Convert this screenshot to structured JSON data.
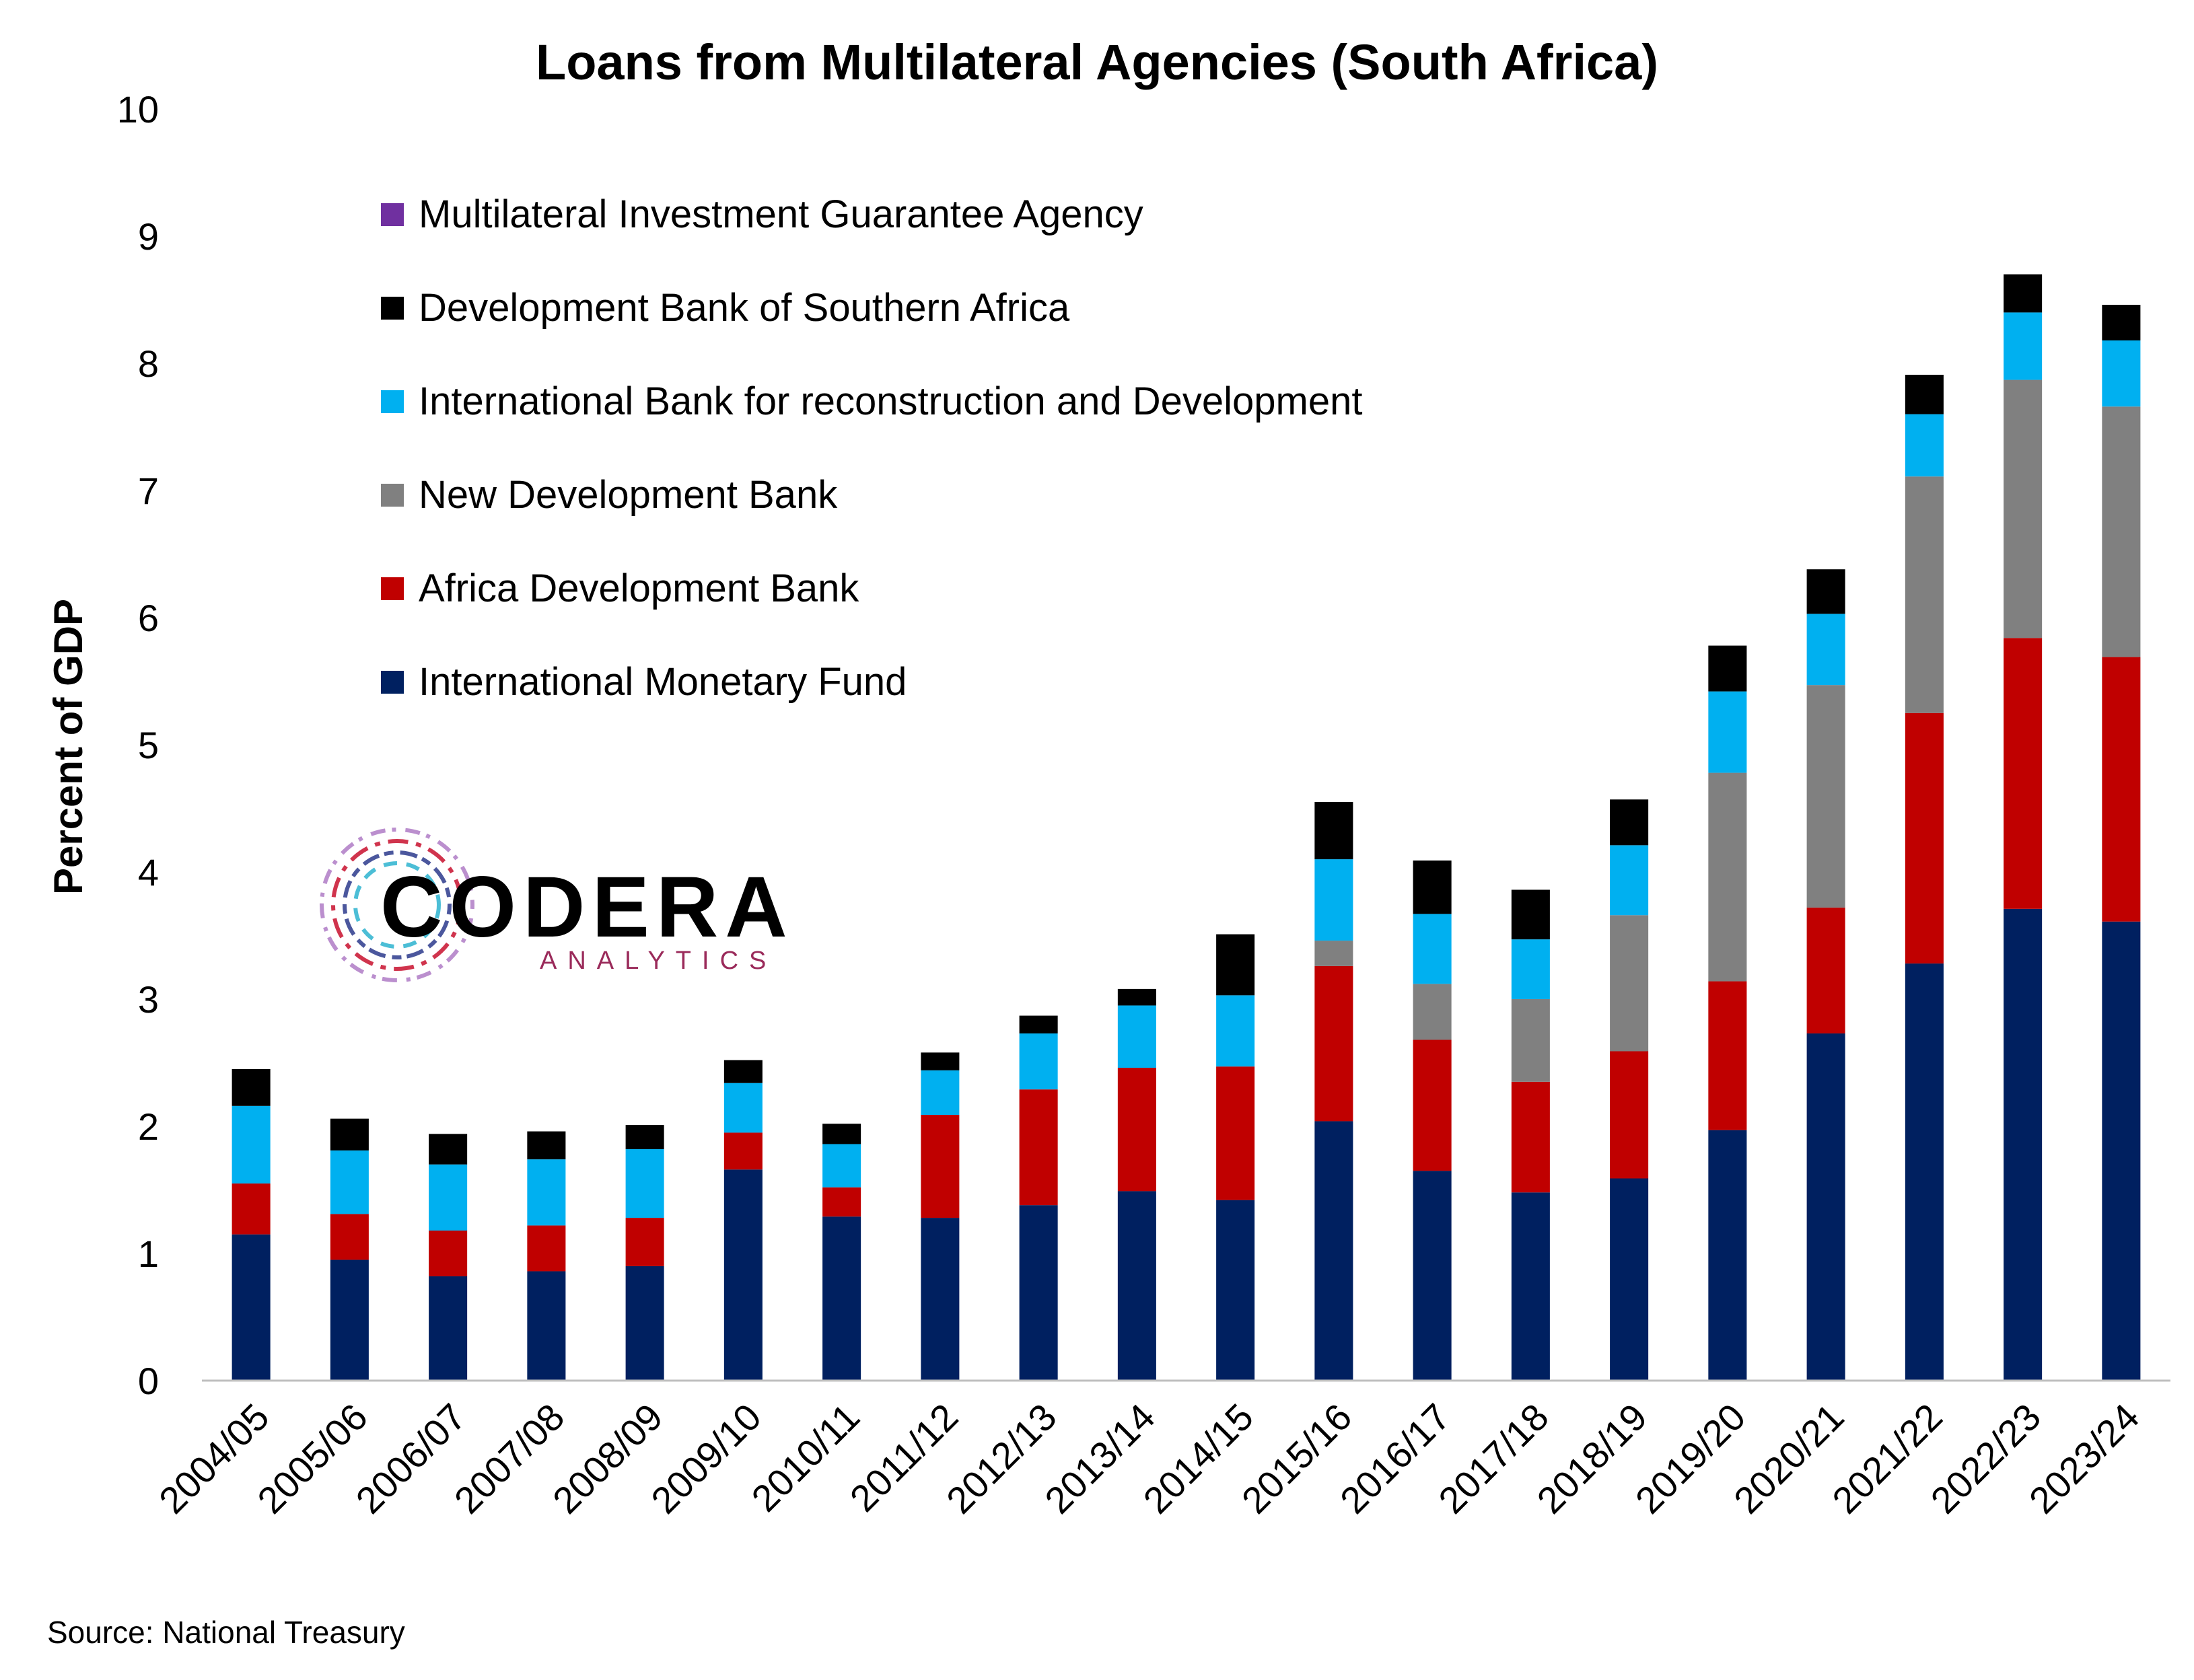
{
  "chart_data": {
    "type": "bar",
    "stacked": true,
    "title": "Loans from Multilateral Agencies (South Africa)",
    "ylabel": "Percent of GDP",
    "xlabel": "",
    "ylim": [
      0,
      10
    ],
    "yticks": [
      0,
      1,
      2,
      3,
      4,
      5,
      6,
      7,
      8,
      9,
      10
    ],
    "grid": false,
    "legend_position": "top-left",
    "categories": [
      "2004/05",
      "2005/06",
      "2006/07",
      "2007/08",
      "2008/09",
      "2009/10",
      "2010/11",
      "2011/12",
      "2012/13",
      "2013/14",
      "2014/15",
      "2015/16",
      "2016/17",
      "2017/18",
      "2018/19",
      "2019/20",
      "2020/21",
      "2021/22",
      "2022/23",
      "2023/24"
    ],
    "series": [
      {
        "name": "International Monetary Fund",
        "color": "#002060",
        "values": [
          1.15,
          0.95,
          0.82,
          0.86,
          0.9,
          1.66,
          1.29,
          1.28,
          1.38,
          1.49,
          1.42,
          2.04,
          1.65,
          1.48,
          1.59,
          1.97,
          2.73,
          3.28,
          3.71,
          3.61
        ]
      },
      {
        "name": "Africa Development Bank",
        "color": "#C00000",
        "values": [
          0.4,
          0.36,
          0.36,
          0.36,
          0.38,
          0.29,
          0.23,
          0.81,
          0.91,
          0.97,
          1.05,
          1.22,
          1.03,
          0.87,
          1.0,
          1.17,
          0.99,
          1.97,
          2.13,
          2.08
        ]
      },
      {
        "name": "New Development Bank",
        "color": "#808080",
        "values": [
          0,
          0,
          0,
          0,
          0,
          0,
          0,
          0,
          0,
          0,
          0,
          0.2,
          0.44,
          0.65,
          1.07,
          1.64,
          1.75,
          1.86,
          2.03,
          1.97
        ]
      },
      {
        "name": "International Bank for reconstruction and Development",
        "color": "#00B0F0",
        "values": [
          0.61,
          0.5,
          0.52,
          0.52,
          0.54,
          0.39,
          0.34,
          0.35,
          0.44,
          0.49,
          0.56,
          0.64,
          0.55,
          0.47,
          0.55,
          0.64,
          0.56,
          0.49,
          0.53,
          0.52
        ]
      },
      {
        "name": "Development Bank of Southern Africa",
        "color": "#000000",
        "values": [
          0.29,
          0.25,
          0.24,
          0.22,
          0.19,
          0.18,
          0.16,
          0.14,
          0.14,
          0.13,
          0.48,
          0.45,
          0.42,
          0.39,
          0.36,
          0.36,
          0.35,
          0.31,
          0.3,
          0.28
        ]
      },
      {
        "name": "Multilateral Investment Guarantee Agency",
        "color": "#7030A0",
        "values": [
          0,
          0,
          0,
          0,
          0,
          0,
          0,
          0,
          0,
          0,
          0,
          0,
          0,
          0,
          0,
          0,
          0,
          0,
          0,
          0
        ]
      }
    ]
  },
  "source": "Source: National Treasury",
  "logo": {
    "main": "CODERA",
    "sub": "ANALYTICS"
  }
}
